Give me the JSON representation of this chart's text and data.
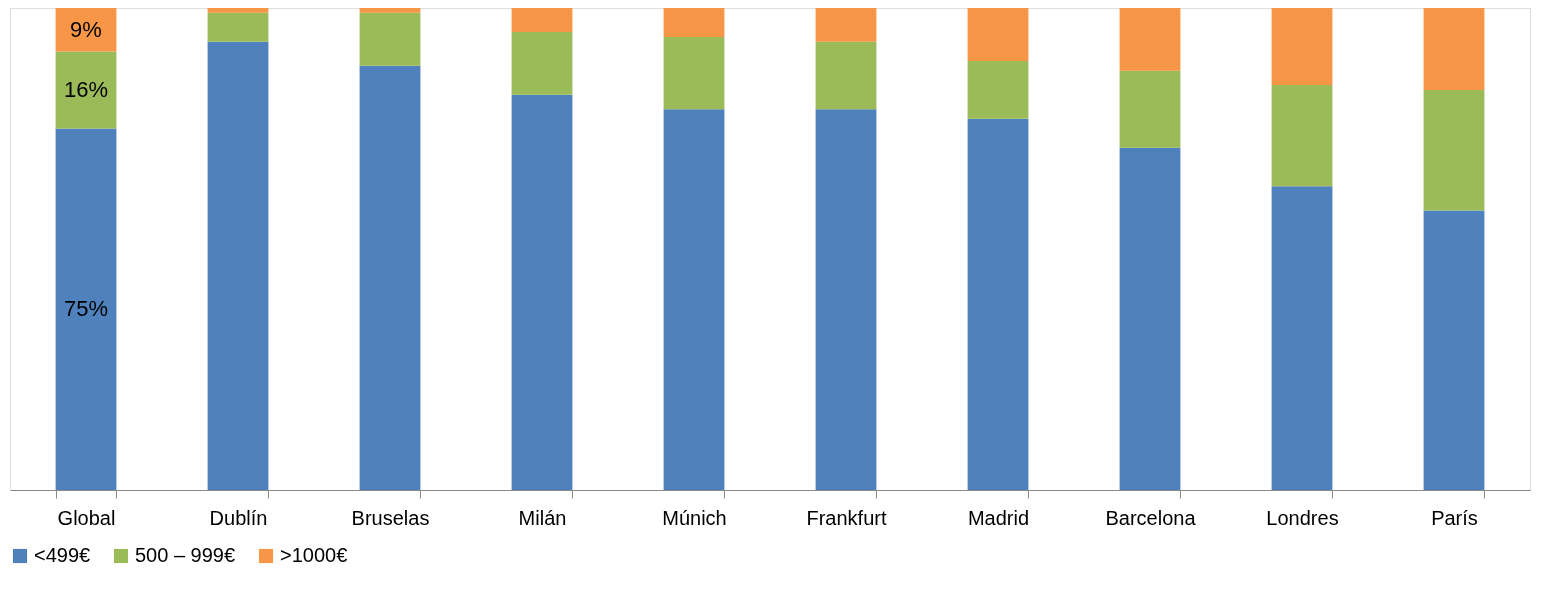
{
  "chart_data": {
    "type": "bar",
    "stacked": true,
    "legend": "bottom",
    "ylim": [
      0,
      100
    ],
    "tick_labels": "x",
    "categories": [
      "Global",
      "Dublín",
      "Bruselas",
      "Milán",
      "Múnich",
      "Frankfurt",
      "Madrid",
      "Barcelona",
      "Londres",
      "París"
    ],
    "series": [
      {
        "name": "<499€",
        "color": "#4f81bd",
        "values": [
          75,
          93,
          88,
          82,
          79,
          79,
          77,
          71,
          63,
          58
        ],
        "value_labels": [
          "75%",
          null,
          null,
          null,
          null,
          null,
          null,
          null,
          null,
          null
        ]
      },
      {
        "name": "500 – 999€",
        "color": "#9bbb59",
        "values": [
          16,
          6,
          11,
          13,
          15,
          14,
          12,
          16,
          21,
          25
        ],
        "value_labels": [
          "16%",
          null,
          null,
          null,
          null,
          null,
          null,
          null,
          null,
          null
        ]
      },
      {
        "name": ">1000€",
        "color": "#f79646",
        "values": [
          9,
          1,
          1,
          5,
          6,
          7,
          11,
          13,
          16,
          17
        ],
        "value_labels": [
          "9%",
          null,
          null,
          null,
          null,
          null,
          null,
          null,
          null,
          null
        ]
      }
    ]
  }
}
